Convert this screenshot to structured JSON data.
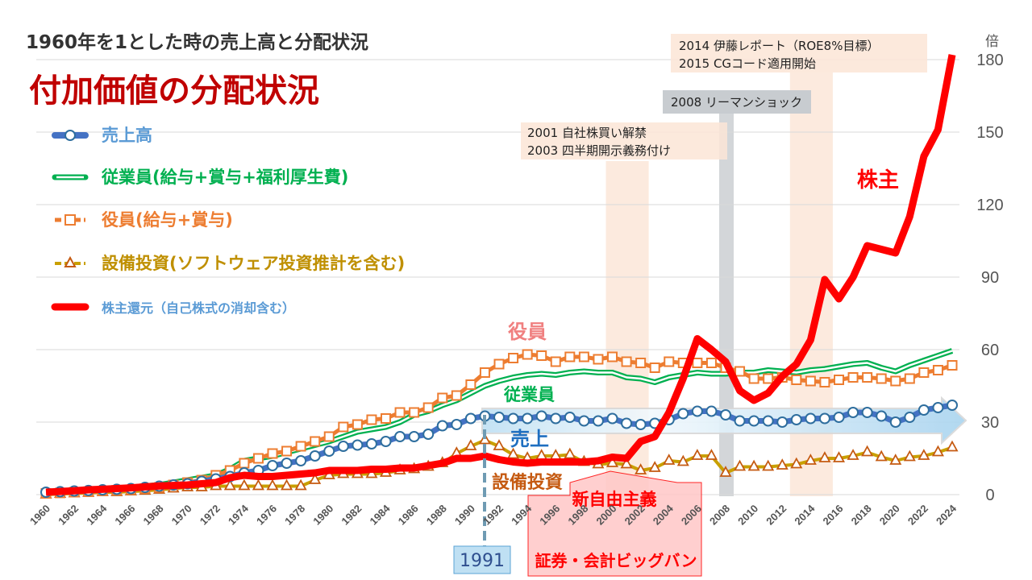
{
  "subtitle": "1960年を1とした時の売上高と分配状況",
  "title": "付加価値の分配状況",
  "unit_label": "倍",
  "annotations": {
    "note_2014_line1": "2014  伊藤レポート（ROE8%目標）",
    "note_2014_line2": "2015  CGコード適用開始",
    "note_2008": "2008  リーマンショック",
    "note_2001_line1": "2001  自社株買い解禁",
    "note_2001_line2": "2003  四半期開示義務付け",
    "label_shareholders": "株主",
    "label_executives": "役員",
    "label_employees": "従業員",
    "label_sales": "売上",
    "label_capex": "設備投資",
    "neoliberal": "新自由主義",
    "bigbang": "証券・会計ビッグバン",
    "year_1991": "1991"
  },
  "colors": {
    "sales": "#4472c4",
    "sales_marker": "#2e6e9e",
    "employees": "#00b050",
    "executives": "#ed7d31",
    "capex": "#c9a000",
    "capex_marker": "#c55a11",
    "shareholders": "#ff0000",
    "title": "#c00000"
  },
  "chart_data": {
    "type": "line",
    "title": "付加価値の分配状況",
    "ylabel": "倍",
    "ylim": [
      0,
      180
    ],
    "yticks": [
      0,
      30,
      60,
      90,
      120,
      150,
      180
    ],
    "xlim": [
      1960,
      2024
    ],
    "xtick_step": 2,
    "grid": true,
    "legend_position": "top-left",
    "shaded_periods": [
      {
        "from": 2000,
        "to": 2002,
        "color": "#fbe5d6"
      },
      {
        "from": 2008,
        "to": 2008,
        "color": "#c8ccd0"
      },
      {
        "from": 2013,
        "to": 2015,
        "color": "#fbe5d6"
      }
    ],
    "series": [
      {
        "key": "sales",
        "name": "売上高",
        "marker": "circle",
        "values": [
          1,
          1.2,
          1.5,
          1.7,
          2,
          2.2,
          2.5,
          3,
          3.5,
          4,
          4.5,
          5.5,
          6.5,
          7.5,
          9,
          10,
          12,
          13,
          14,
          16,
          18,
          20,
          20.5,
          21,
          22,
          24,
          24,
          25,
          28.5,
          29,
          31.5,
          32.5,
          32,
          31.5,
          31.5,
          32.5,
          31.5,
          32,
          30.5,
          30.5,
          31.5,
          29.5,
          29,
          29.5,
          31,
          33.5,
          34.5,
          34.5,
          33,
          30.5,
          30.5,
          30.5,
          30,
          31,
          31.5,
          31.5,
          32,
          34,
          34,
          32.5,
          30,
          32,
          35,
          36,
          37
        ]
      },
      {
        "key": "employees",
        "name": "従業員(給与+賞与+福利厚生費)",
        "marker": "none",
        "values": [
          1,
          1.3,
          1.6,
          2,
          2.3,
          2.6,
          3,
          3.5,
          4,
          5,
          6,
          7,
          8,
          10.5,
          14,
          15,
          16,
          17.5,
          19,
          20.5,
          22,
          24,
          26,
          27,
          28,
          30,
          33,
          34.5,
          37,
          39,
          42,
          45,
          47,
          48.5,
          49.5,
          50,
          49.5,
          50.5,
          51,
          50.5,
          50.5,
          48.5,
          48,
          46.5,
          48.5,
          49.5,
          50.5,
          50,
          50,
          50.5,
          50.5,
          51.5,
          51,
          50.5,
          51.5,
          52,
          53,
          54,
          54.5,
          52.5,
          51,
          53.5,
          55.5,
          57.5,
          59.5
        ]
      },
      {
        "key": "executives",
        "name": "役員(給与+賞与)",
        "marker": "square",
        "values": [
          0.5,
          0.7,
          1,
          1.2,
          1.5,
          1.8,
          2,
          2.5,
          3,
          4,
          5,
          6,
          8,
          10,
          13,
          15,
          17,
          18,
          20,
          22,
          24,
          28,
          29,
          31,
          31.5,
          34,
          34,
          36,
          40,
          41,
          45.5,
          50.5,
          54,
          56.5,
          58,
          57.5,
          55,
          57,
          57,
          56,
          57,
          55,
          54.5,
          52.5,
          55,
          54.5,
          54.5,
          54.5,
          52.5,
          51,
          48,
          48,
          48.5,
          47.5,
          47,
          46.5,
          47.5,
          48.5,
          48.5,
          48,
          47,
          48,
          50.5,
          51.5,
          53.5
        ]
      },
      {
        "key": "capex",
        "name": "設備投資(ソフトウェア投資推計を含む)",
        "marker": "triangle",
        "values": [
          0,
          0.3,
          0.5,
          0.7,
          1,
          1,
          1.3,
          1.6,
          2,
          2.5,
          3,
          3,
          3.5,
          3.5,
          3.5,
          3.5,
          3.5,
          3.5,
          3.5,
          6,
          8,
          8.5,
          8.5,
          8.5,
          9,
          10,
          10.5,
          11.5,
          13,
          17,
          20,
          22.5,
          20,
          16.5,
          15,
          16,
          16,
          16.5,
          13.5,
          12.5,
          13,
          12.5,
          10,
          11,
          14,
          13.5,
          16,
          16,
          9,
          11.5,
          11.5,
          11.5,
          12,
          12.5,
          14,
          15,
          15,
          16,
          17.5,
          15.5,
          14,
          15.5,
          16,
          17.5,
          19.5
        ]
      },
      {
        "key": "shareholders",
        "name": "株主還元（自己株式の消却含む）",
        "marker": "none",
        "values": [
          1,
          1.3,
          1.6,
          2,
          2.2,
          2.5,
          2.8,
          3.2,
          3.6,
          3.8,
          4,
          4.5,
          5,
          7,
          8,
          7.5,
          7.5,
          8,
          8.5,
          9,
          10,
          10,
          10,
          10.5,
          10.5,
          11,
          11,
          12,
          13,
          15,
          15,
          16,
          14.5,
          13.5,
          13,
          13.5,
          13.5,
          13.5,
          13.5,
          14,
          15.5,
          15,
          22,
          24,
          34,
          48,
          64.5,
          60,
          55,
          43,
          39,
          42,
          49,
          54,
          64,
          89,
          81,
          90,
          103,
          101.5,
          100,
          115,
          140,
          151,
          182
        ]
      }
    ]
  }
}
